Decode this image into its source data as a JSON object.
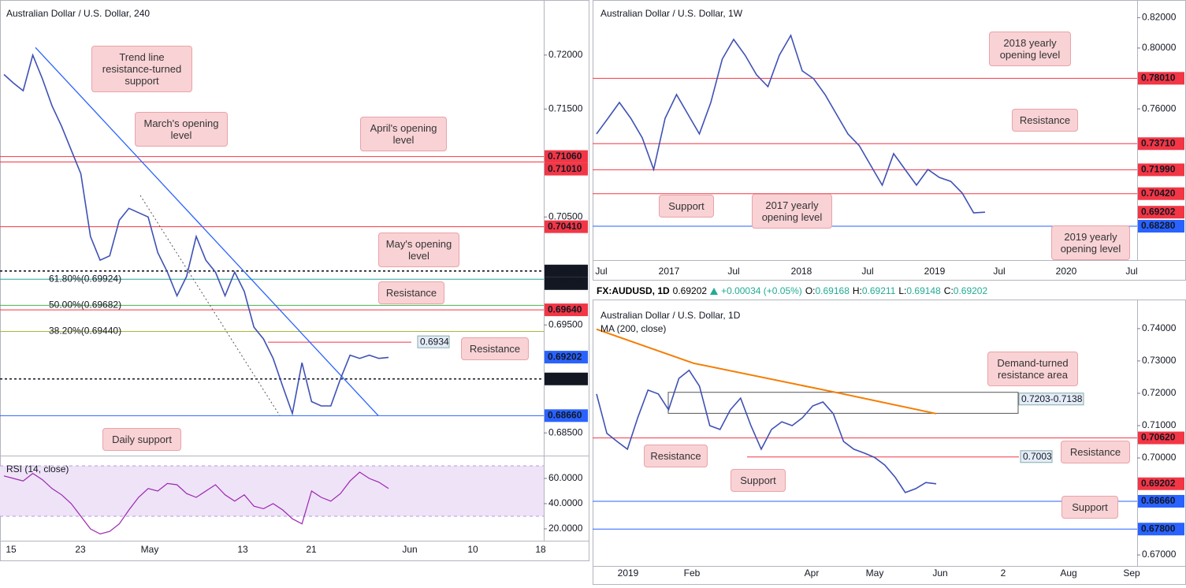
{
  "chart_data": [
    {
      "type": "line",
      "title": "Australian Dollar / U.S. Dollar, 240",
      "color": "#3f51b5",
      "values": [
        0.7182,
        0.7174,
        0.7167,
        0.72,
        0.7178,
        0.7153,
        0.7134,
        0.7112,
        0.709,
        0.7032,
        0.701,
        0.7014,
        0.7047,
        0.7058,
        0.7054,
        0.705,
        0.7017,
        0.6999,
        0.6977,
        0.6995,
        0.7032,
        0.701,
        0.6999,
        0.6977,
        0.6999,
        0.6981,
        0.6948,
        0.6937,
        0.6919,
        0.6893,
        0.6868,
        0.6915,
        0.6879,
        0.6875,
        0.6875,
        0.69,
        0.6922,
        0.6919,
        0.6922,
        0.6919,
        0.692
      ],
      "ylim": [
        0.6829,
        0.7251
      ],
      "yticks": [
        {
          "value": 0.72,
          "label": "0.72000"
        },
        {
          "value": 0.715,
          "label": "0.71500"
        },
        {
          "value": 0.705,
          "label": "0.70500"
        },
        {
          "value": 0.695,
          "label": "0.69500"
        },
        {
          "value": 0.685,
          "label": "0.68500"
        }
      ],
      "x_labels": [
        "15",
        "23",
        "May",
        "13",
        "21",
        "Jun",
        "10",
        "18"
      ],
      "levels": [
        {
          "value": 0.7106,
          "label": "0.71060",
          "color": "#f23645"
        },
        {
          "value": 0.7101,
          "label": "0.71010",
          "color": "#f23645"
        },
        {
          "value": 0.7041,
          "label": "0.70410",
          "color": "#f23645"
        },
        {
          "value": 0.7,
          "label": "0.70000",
          "color": "#131722",
          "dash": true
        },
        {
          "value": 0.7,
          "label": "0.70000",
          "color": "#131722",
          "line": false
        },
        {
          "value": 0.6964,
          "label": "0.69640",
          "color": "#f23645"
        },
        {
          "value": 0.69202,
          "label": "0.69202",
          "color": "#2962ff",
          "line": false
        },
        {
          "value": 0.69,
          "label": "0.69000",
          "color": "#131722",
          "dash": true
        },
        {
          "value": 0.6866,
          "label": "0.68660",
          "color": "#2962ff"
        }
      ],
      "fibs": [
        {
          "value": 0.69924,
          "label": "61.80%(0.69924)",
          "color": "#26a69a"
        },
        {
          "value": 0.69682,
          "label": "50.00%(0.69682)",
          "color": "#4caf50"
        },
        {
          "value": 0.6944,
          "label": "38.20%(0.69440)",
          "color": "#a8b83a"
        }
      ],
      "segments": [
        {
          "value": 0.6934,
          "color": "#f23645"
        }
      ],
      "trendlines": [
        {
          "color": "#2962ff",
          "values": [
            0.7207,
            0.6866
          ]
        },
        {
          "color": "#555555",
          "dash": true,
          "values": [
            0.707,
            0.6866
          ]
        }
      ],
      "annotations": [
        "Trend line resistance-turned support",
        "March's opening level",
        "April's opening level",
        "May's opening level",
        "Resistance",
        "Resistance",
        "Daily support"
      ],
      "rsi": {
        "title": "RSI (14, close)",
        "color": "#9c27b0",
        "values": [
          62,
          60,
          58,
          64,
          59,
          52,
          47,
          40,
          30,
          20,
          16,
          18,
          24,
          35,
          45,
          52,
          50,
          56,
          55,
          48,
          45,
          50,
          55,
          47,
          42,
          47,
          38,
          36,
          40,
          35,
          28,
          24,
          50,
          45,
          42,
          48,
          58,
          65,
          60,
          57,
          52
        ],
        "ylim": [
          10.6,
          78.1
        ],
        "yticks": [
          {
            "value": 60,
            "label": "60.0000"
          },
          {
            "value": 40,
            "label": "40.0000"
          },
          {
            "value": 20,
            "label": "20.0000"
          }
        ],
        "band": [
          30,
          70
        ]
      }
    },
    {
      "type": "line",
      "title": "Australian Dollar / U.S. Dollar, 1W",
      "color": "#3f51b5",
      "values": [
        0.7435,
        0.7538,
        0.7642,
        0.7538,
        0.7409,
        0.7201,
        0.7538,
        0.7694,
        0.7564,
        0.7435,
        0.7642,
        0.7927,
        0.8057,
        0.7953,
        0.7824,
        0.7746,
        0.7953,
        0.8083,
        0.785,
        0.7798,
        0.7694,
        0.7564,
        0.7435,
        0.7357,
        0.7227,
        0.7098,
        0.7305,
        0.7201,
        0.7098,
        0.7201,
        0.7149,
        0.7123,
        0.7046,
        0.6916,
        0.692
      ],
      "ylim": [
        0.6605,
        0.8316
      ],
      "yticks": [
        {
          "value": 0.82,
          "label": "0.82000"
        },
        {
          "value": 0.8,
          "label": "0.80000"
        },
        {
          "value": 0.76,
          "label": "0.76000"
        }
      ],
      "x_labels": [
        "Jul",
        "2017",
        "Jul",
        "2018",
        "Jul",
        "2019",
        "Jul",
        "2020",
        "Jul"
      ],
      "levels": [
        {
          "value": 0.7801,
          "label": "0.78010",
          "color": "#f23645"
        },
        {
          "value": 0.7371,
          "label": "0.73710",
          "color": "#f23645"
        },
        {
          "value": 0.7199,
          "label": "0.71990",
          "color": "#f23645"
        },
        {
          "value": 0.7042,
          "label": "0.70420",
          "color": "#f23645"
        },
        {
          "value": 0.69202,
          "label": "0.69202",
          "color": "#f23645",
          "line": false
        },
        {
          "value": 0.6828,
          "label": "0.68280",
          "color": "#2962ff"
        }
      ],
      "annotations": [
        "2018 yearly opening level",
        "Resistance",
        "Support",
        "2017 yearly opening level",
        "2019 yearly opening level"
      ]
    },
    {
      "type": "line",
      "title": "Australian Dollar / U.S. Dollar, 1D",
      "color": "#3f51b5",
      "header": {
        "symbol": "FX:AUDUSD, 1D",
        "last": 0.69202,
        "change": "+0.00034 (+0.05%)",
        "ohlc": [
          {
            "label": "O:",
            "value": 0.69168
          },
          {
            "label": "H:",
            "value": 0.69211
          },
          {
            "label": "L:",
            "value": 0.69148
          },
          {
            "label": "C:",
            "value": 0.69202
          }
        ]
      },
      "values": [
        0.7198,
        0.7076,
        0.7051,
        0.7027,
        0.7124,
        0.721,
        0.7198,
        0.7149,
        0.7246,
        0.7271,
        0.7222,
        0.71,
        0.7088,
        0.7149,
        0.7185,
        0.71,
        0.7027,
        0.7088,
        0.7112,
        0.71,
        0.7124,
        0.7161,
        0.7173,
        0.7137,
        0.7051,
        0.7027,
        0.7015,
        0.7002,
        0.6978,
        0.6941,
        0.6893,
        0.6905,
        0.6924,
        0.692
      ],
      "ylim": [
        0.6666,
        0.749
      ],
      "yticks": [
        {
          "value": 0.74,
          "label": "0.74000"
        },
        {
          "value": 0.73,
          "label": "0.73000"
        },
        {
          "value": 0.72,
          "label": "0.72000"
        },
        {
          "value": 0.71,
          "label": "0.71000"
        },
        {
          "value": 0.7,
          "label": "0.70000"
        },
        {
          "value": 0.67,
          "label": "0.67000"
        }
      ],
      "x_labels": [
        "2019",
        "Feb",
        "Apr",
        "May",
        "Jun",
        "2",
        "Aug",
        "Sep"
      ],
      "levels": [
        {
          "value": 0.7062,
          "label": "0.70620",
          "color": "#f23645"
        },
        {
          "value": 0.69202,
          "label": "0.69202",
          "color": "#f23645",
          "line": false
        },
        {
          "value": 0.6866,
          "label": "0.68660",
          "color": "#2962ff"
        },
        {
          "value": 0.678,
          "label": "0.67800",
          "color": "#2962ff"
        }
      ],
      "segments": [
        {
          "value": 0.7003,
          "color": "#f23645"
        }
      ],
      "zone": {
        "values": [
          0.7203,
          0.7138
        ],
        "label": "0.7203-0.7138"
      },
      "indicator": {
        "name": "MA (200, close)",
        "color": "#f57c00",
        "values": [
          0.7398,
          0.7293,
          0.7203,
          0.7137
        ]
      },
      "annotations": [
        "Demand-turned resistance area",
        "Resistance",
        "Resistance",
        "Support",
        "Support"
      ]
    }
  ]
}
